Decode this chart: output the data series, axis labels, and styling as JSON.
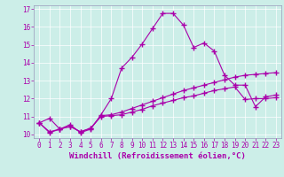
{
  "xlabel": "Windchill (Refroidissement éolien,°C)",
  "bg_color": "#cceee8",
  "line_color": "#aa00aa",
  "xlim": [
    -0.5,
    23.5
  ],
  "ylim": [
    9.8,
    17.2
  ],
  "xticks": [
    0,
    1,
    2,
    3,
    4,
    5,
    6,
    7,
    8,
    9,
    10,
    11,
    12,
    13,
    14,
    15,
    16,
    17,
    18,
    19,
    20,
    21,
    22,
    23
  ],
  "yticks": [
    10,
    11,
    12,
    13,
    14,
    15,
    16,
    17
  ],
  "series1_x": [
    0,
    1,
    2,
    3,
    4,
    5,
    6,
    7,
    8,
    9,
    10,
    11,
    12,
    13,
    14,
    15,
    16,
    17,
    18,
    19,
    20,
    21,
    22,
    23
  ],
  "series1_y": [
    10.65,
    10.9,
    10.3,
    10.55,
    10.1,
    10.3,
    11.1,
    12.0,
    13.7,
    14.3,
    15.05,
    15.9,
    16.75,
    16.75,
    16.1,
    14.85,
    15.1,
    14.65,
    13.3,
    12.75,
    12.75,
    11.55,
    12.1,
    12.2
  ],
  "series2_x": [
    0,
    1,
    2,
    3,
    4,
    5,
    6,
    7,
    8,
    9,
    10,
    11,
    12,
    13,
    14,
    15,
    16,
    17,
    18,
    19,
    20,
    21,
    22,
    23
  ],
  "series2_y": [
    10.65,
    10.15,
    10.3,
    10.45,
    10.15,
    10.35,
    11.05,
    11.1,
    11.25,
    11.45,
    11.65,
    11.85,
    12.05,
    12.25,
    12.45,
    12.6,
    12.75,
    12.9,
    13.05,
    13.2,
    13.3,
    13.35,
    13.4,
    13.45
  ],
  "series3_x": [
    0,
    1,
    2,
    3,
    4,
    5,
    6,
    7,
    8,
    9,
    10,
    11,
    12,
    13,
    14,
    15,
    16,
    17,
    18,
    19,
    20,
    21,
    22,
    23
  ],
  "series3_y": [
    10.65,
    10.1,
    10.3,
    10.45,
    10.15,
    10.35,
    11.0,
    11.05,
    11.1,
    11.25,
    11.4,
    11.6,
    11.75,
    11.9,
    12.05,
    12.15,
    12.3,
    12.45,
    12.55,
    12.65,
    11.95,
    12.0,
    12.0,
    12.05
  ],
  "marker": "+",
  "markersize": 4,
  "markeredgewidth": 1.0,
  "linewidth": 0.8,
  "xlabel_fontsize": 6.5,
  "tick_fontsize": 5.5,
  "grid_color": "#ffffff",
  "spine_color": "#9999bb"
}
